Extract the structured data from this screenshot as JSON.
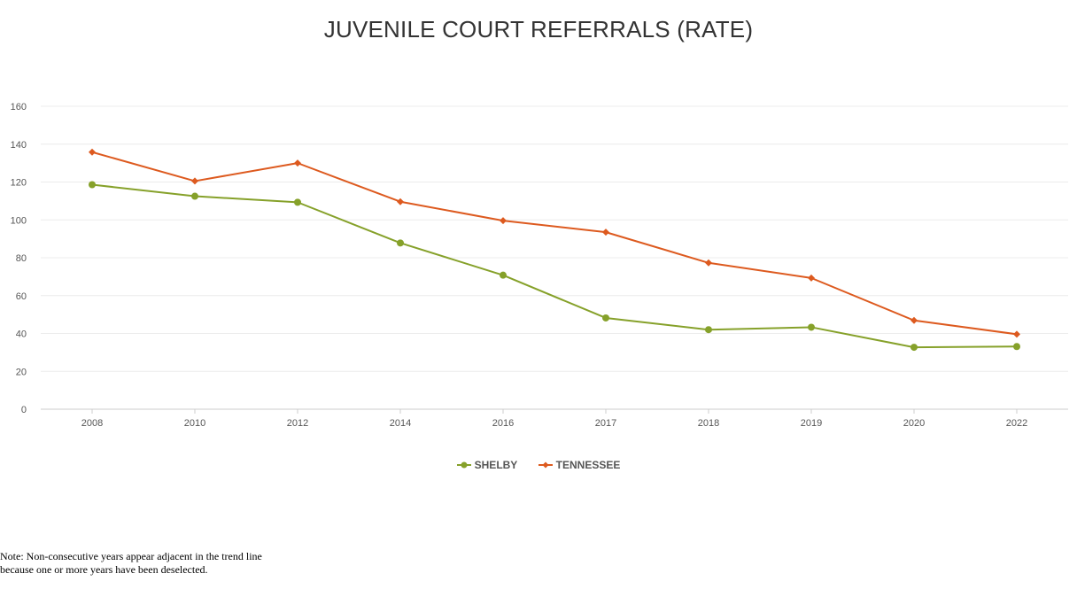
{
  "chart_data": {
    "type": "line",
    "title": "JUVENILE COURT REFERRALS (RATE)",
    "categories": [
      "2008",
      "2010",
      "2012",
      "2014",
      "2016",
      "2017",
      "2018",
      "2019",
      "2020",
      "2022"
    ],
    "series": [
      {
        "name": "SHELBY",
        "color": "#86a12a",
        "marker": "circle",
        "values": [
          118.6,
          112.5,
          109.3,
          87.8,
          70.8,
          48.2,
          42.0,
          43.3,
          32.7,
          33.1
        ]
      },
      {
        "name": "TENNESSEE",
        "color": "#dd5a1f",
        "marker": "diamond",
        "values": [
          135.8,
          120.5,
          130.0,
          109.6,
          99.6,
          93.5,
          77.3,
          69.3,
          46.9,
          39.6
        ]
      }
    ],
    "ylim": [
      0,
      160
    ],
    "yticks": [
      "0",
      "20",
      "40",
      "60",
      "80",
      "100",
      "120",
      "140",
      "160"
    ],
    "grid": true,
    "legend": "bottom-center"
  },
  "note": {
    "line1": "Note: Non-consecutive years appear adjacent in the trend line",
    "line2": "because one or more years have been deselected."
  }
}
